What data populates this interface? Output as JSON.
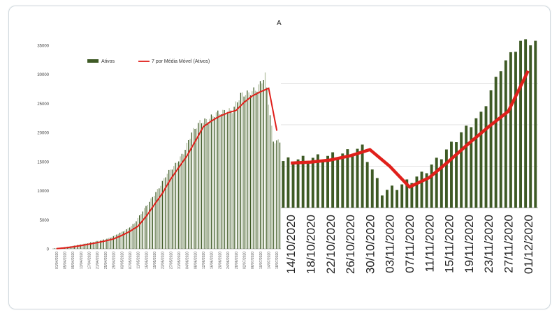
{
  "marker_text": "A",
  "colors": {
    "bar_dark": "#3e5a25",
    "bar_light": "#b4c0a4",
    "line": "#e0201b",
    "axis": "#999999",
    "grid": "#d9d9d9"
  },
  "chart_data": [
    {
      "type": "bar",
      "legend": {
        "placement": "top",
        "entries": [
          "Ativos",
          "7 por Média Móvel   (Ativos)"
        ]
      },
      "series": [
        {
          "name": "Ativos",
          "type": "bar",
          "x": [
            "01/04/2020",
            "05/04/2020",
            "09/04/2020",
            "13/04/2020",
            "17/04/2020",
            "21/04/2020",
            "25/04/2020",
            "29/04/2020",
            "03/05/2020",
            "07/05/2020",
            "11/05/2020",
            "15/05/2020",
            "19/05/2020",
            "23/05/2020",
            "27/05/2020",
            "31/05/2020",
            "04/06/2020",
            "08/06/2020",
            "12/06/2020",
            "16/06/2020",
            "20/06/2020",
            "24/06/2020",
            "28/06/2020",
            "02/07/2020",
            "06/07/2020",
            "10/07/2020",
            "14/07/2020",
            "18/07/2020"
          ],
          "values": [
            50,
            200,
            400,
            650,
            900,
            1200,
            1500,
            1900,
            2600,
            3300,
            4400,
            6500,
            8500,
            10500,
            13000,
            14500,
            16500,
            20000,
            21800,
            22200,
            23300,
            23600,
            23800,
            26500,
            26800,
            27500,
            29800,
            18500
          ]
        },
        {
          "name": "7 por Média Móvel   (Ativos)",
          "type": "line",
          "x": [
            "01/04/2020",
            "05/04/2020",
            "09/04/2020",
            "13/04/2020",
            "17/04/2020",
            "21/04/2020",
            "25/04/2020",
            "29/04/2020",
            "03/05/2020",
            "07/05/2020",
            "11/05/2020",
            "15/05/2020",
            "19/05/2020",
            "23/05/2020",
            "27/05/2020",
            "31/05/2020",
            "04/06/2020",
            "08/06/2020",
            "12/06/2020",
            "16/06/2020",
            "20/06/2020",
            "24/06/2020",
            "28/06/2020",
            "02/07/2020",
            "06/07/2020",
            "10/07/2020",
            "14/07/2020",
            "18/07/2020"
          ],
          "values": [
            30,
            150,
            330,
            550,
            800,
            1050,
            1350,
            1700,
            2300,
            3000,
            3900,
            5600,
            7600,
            9600,
            12000,
            14000,
            16000,
            18500,
            21000,
            22000,
            22800,
            23400,
            23800,
            25200,
            26300,
            27000,
            27600,
            20300
          ]
        }
      ],
      "ylim": [
        0,
        35000
      ],
      "yticks": [
        0,
        5000,
        10000,
        15000,
        20000,
        25000,
        30000,
        35000
      ],
      "xtick_labels": [
        "01/04/2020",
        "05/04/2020",
        "09/04/2020",
        "13/04/2020",
        "17/04/2020",
        "21/04/2020",
        "25/04/2020",
        "29/04/2020",
        "03/05/2020",
        "07/05/2020",
        "11/05/2020",
        "15/05/2020",
        "19/05/2020",
        "23/05/2020",
        "27/05/2020",
        "31/05/2020",
        "04/06/2020",
        "08/06/2020",
        "12/06/2020",
        "16/06/2020",
        "20/06/2020",
        "24/06/2020",
        "28/06/2020",
        "02/07/2020",
        "06/07/2020",
        "10/07/2020",
        "14/07/2020",
        "18/07/2020"
      ],
      "grid": false
    },
    {
      "type": "bar",
      "series": [
        {
          "type": "bar",
          "x": [
            "14/10/2020",
            "18/10/2020",
            "22/10/2020",
            "26/10/2020",
            "30/10/2020",
            "03/11/2020",
            "07/11/2020",
            "11/11/2020",
            "15/11/2020",
            "19/11/2020",
            "23/11/2020",
            "27/11/2020",
            "01/12/2020"
          ],
          "values": [
            24500,
            24700,
            24900,
            25200,
            25800,
            21500,
            22200,
            23200,
            25000,
            27200,
            29000,
            33500,
            36000
          ]
        },
        {
          "type": "line",
          "x": [
            "14/10/2020",
            "18/10/2020",
            "22/10/2020",
            "26/10/2020",
            "30/10/2020",
            "03/11/2020",
            "07/11/2020",
            "11/11/2020",
            "15/11/2020",
            "19/11/2020",
            "23/11/2020",
            "27/11/2020",
            "01/12/2020"
          ],
          "values": [
            24300,
            24400,
            24600,
            25000,
            25600,
            24000,
            22000,
            22900,
            24500,
            26200,
            27800,
            29300,
            33200
          ]
        }
      ],
      "ylim": [
        20000,
        36000
      ],
      "xtick_labels": [
        "14/10/2020",
        "18/10/2020",
        "22/10/2020",
        "26/10/2020",
        "30/10/2020",
        "03/11/2020",
        "07/11/2020",
        "11/11/2020",
        "15/11/2020",
        "19/11/2020",
        "23/11/2020",
        "27/11/2020",
        "01/12/2020"
      ],
      "grid": true
    }
  ]
}
